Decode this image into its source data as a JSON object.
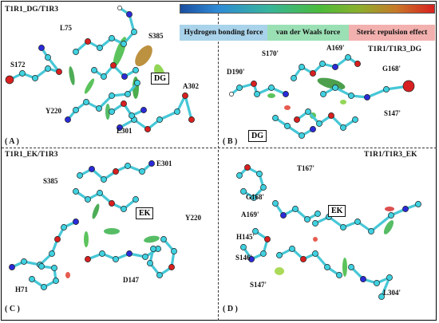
{
  "panels": {
    "A": {
      "title": "T1R1_DG/T1R3",
      "label": "( A )",
      "ligand": "DG",
      "residues": [
        "L75",
        "S385",
        "S172",
        "A302",
        "Y220",
        "E301"
      ]
    },
    "B": {
      "title": "T1R1/T1R3_DG",
      "label": "( B )",
      "ligand": "DG",
      "residues": [
        "S170'",
        "A169'",
        "D190'",
        "G168'",
        "S147'"
      ]
    },
    "C": {
      "title": "T1R1_EK/T1R3",
      "label": "( C )",
      "ligand": "EK",
      "residues": [
        "E301",
        "S385",
        "Y220",
        "D147",
        "H71"
      ]
    },
    "D": {
      "title": "T1R1/T1R3_EK",
      "label": "( D )",
      "ligand": "EK",
      "residues": [
        "T167'",
        "G168'",
        "A169'",
        "H145'",
        "S146'",
        "S147'",
        "L304'"
      ]
    }
  },
  "legend": {
    "items": [
      {
        "label": "Hydrogen bonding force",
        "color": "#a9d3ea"
      },
      {
        "label": "van der Waals force",
        "color": "#9be0b5"
      },
      {
        "label": "Steric repulsion effect",
        "color": "#f2b1ae"
      }
    ]
  },
  "colors": {
    "carbon": "#3fd1e0",
    "oxygen": "#d82020",
    "nitrogen": "#2a2ad8",
    "hydrogen": "#ffffff",
    "bond": "#3a3a3a"
  }
}
